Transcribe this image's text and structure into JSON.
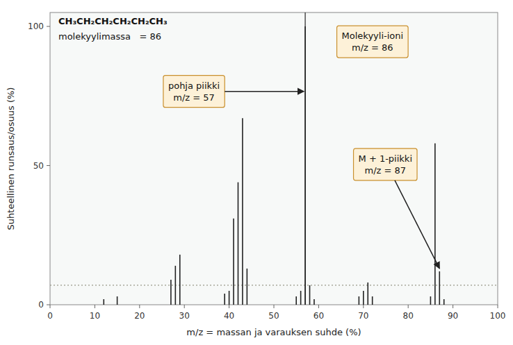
{
  "chart_data": {
    "type": "bar",
    "xlabel": "m/z = massan ja varauksen suhde (%)",
    "ylabel": "Suhteellinen runsaus/osuus (%)",
    "x": [
      12,
      15,
      27,
      28,
      29,
      39,
      40,
      41,
      42,
      43,
      44,
      55,
      56,
      57,
      58,
      59,
      69,
      70,
      71,
      72,
      85,
      86,
      87,
      88
    ],
    "values": [
      2,
      3,
      9,
      14,
      18,
      4,
      5,
      31,
      44,
      67,
      13,
      3,
      5,
      100,
      7,
      2,
      3,
      5,
      8,
      3,
      3,
      58,
      12,
      2
    ],
    "color": "#222222",
    "xlim": [
      0,
      100
    ],
    "ylim": [
      0,
      105
    ],
    "xticks": [
      0,
      10,
      20,
      30,
      40,
      50,
      60,
      70,
      80,
      90,
      100
    ],
    "yticks": [
      0,
      50,
      100
    ],
    "reference_lines": [
      {
        "x": 57,
        "color": "#333333"
      },
      {
        "y": 7,
        "color": "#999988",
        "line_style": "dotted"
      }
    ],
    "annotations": [
      {
        "text": "CH₃CH₂CH₂CH₂CH₂CH₃"
      },
      {
        "text": "molekyylimassa   = 86"
      },
      {
        "text": "pohja piikki\nm/z = 57",
        "x": 57
      },
      {
        "text": "Molekyyli-ioni\nm/z = 86",
        "x": 86
      },
      {
        "text": "M + 1-piikki\nm/z = 87",
        "x": 87
      }
    ]
  }
}
